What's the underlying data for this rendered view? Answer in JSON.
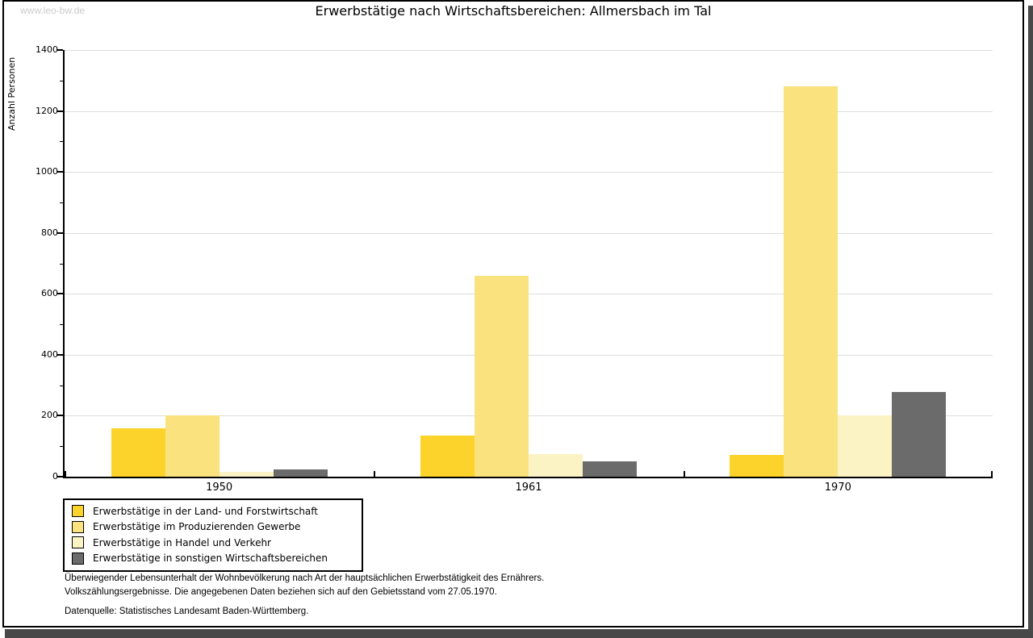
{
  "page": {
    "watermark": "www.leo-bw.de",
    "title": "Erwerbstätige nach Wirtschaftsbereichen: Allmersbach im Tal"
  },
  "chart_data": {
    "type": "bar",
    "title": "Erwerbstätige nach Wirtschaftsbereichen: Allmersbach im Tal",
    "xlabel": "",
    "ylabel": "Anzahl Personen",
    "categories": [
      "1950",
      "1961",
      "1970"
    ],
    "series": [
      {
        "name": "Erwerbstätige in der Land- und Forstwirtschaft",
        "color": "#FBD32B",
        "values": [
          160,
          135,
          72
        ]
      },
      {
        "name": "Erwerbstätige im Produzierenden Gewerbe",
        "color": "#FAE37F",
        "values": [
          200,
          660,
          1280
        ]
      },
      {
        "name": "Erwerbstätige in Handel und Verkehr",
        "color": "#FBF3C3",
        "values": [
          15,
          73,
          200
        ]
      },
      {
        "name": "Erwerbstätige in sonstigen Wirtschaftsbereichen",
        "color": "#6B6B6B",
        "values": [
          25,
          50,
          277
        ]
      }
    ],
    "ylim": [
      0,
      1400
    ],
    "yticks": [
      0,
      200,
      400,
      600,
      800,
      1000,
      1200,
      1400
    ],
    "minor_ytick_step": 100,
    "grid": true,
    "legend_position": "bottom-left"
  },
  "footer": {
    "note_line1": "Überwiegender Lebensunterhalt der Wohnbevölkerung nach Art der hauptsächlichen Erwerbstätigkeit des Ernährers.",
    "note_line2": "Volkszählungsergebnisse. Die angegebenen Daten beziehen sich auf den Gebietsstand vom 27.05.1970.",
    "source": "Datenquelle: Statistisches Landesamt Baden-Württemberg."
  },
  "colors": {
    "grid": "#DDDDDD",
    "axis": "#000000",
    "frame": "#000000",
    "shadow": "#484848",
    "watermark": "#CBCBCB"
  }
}
